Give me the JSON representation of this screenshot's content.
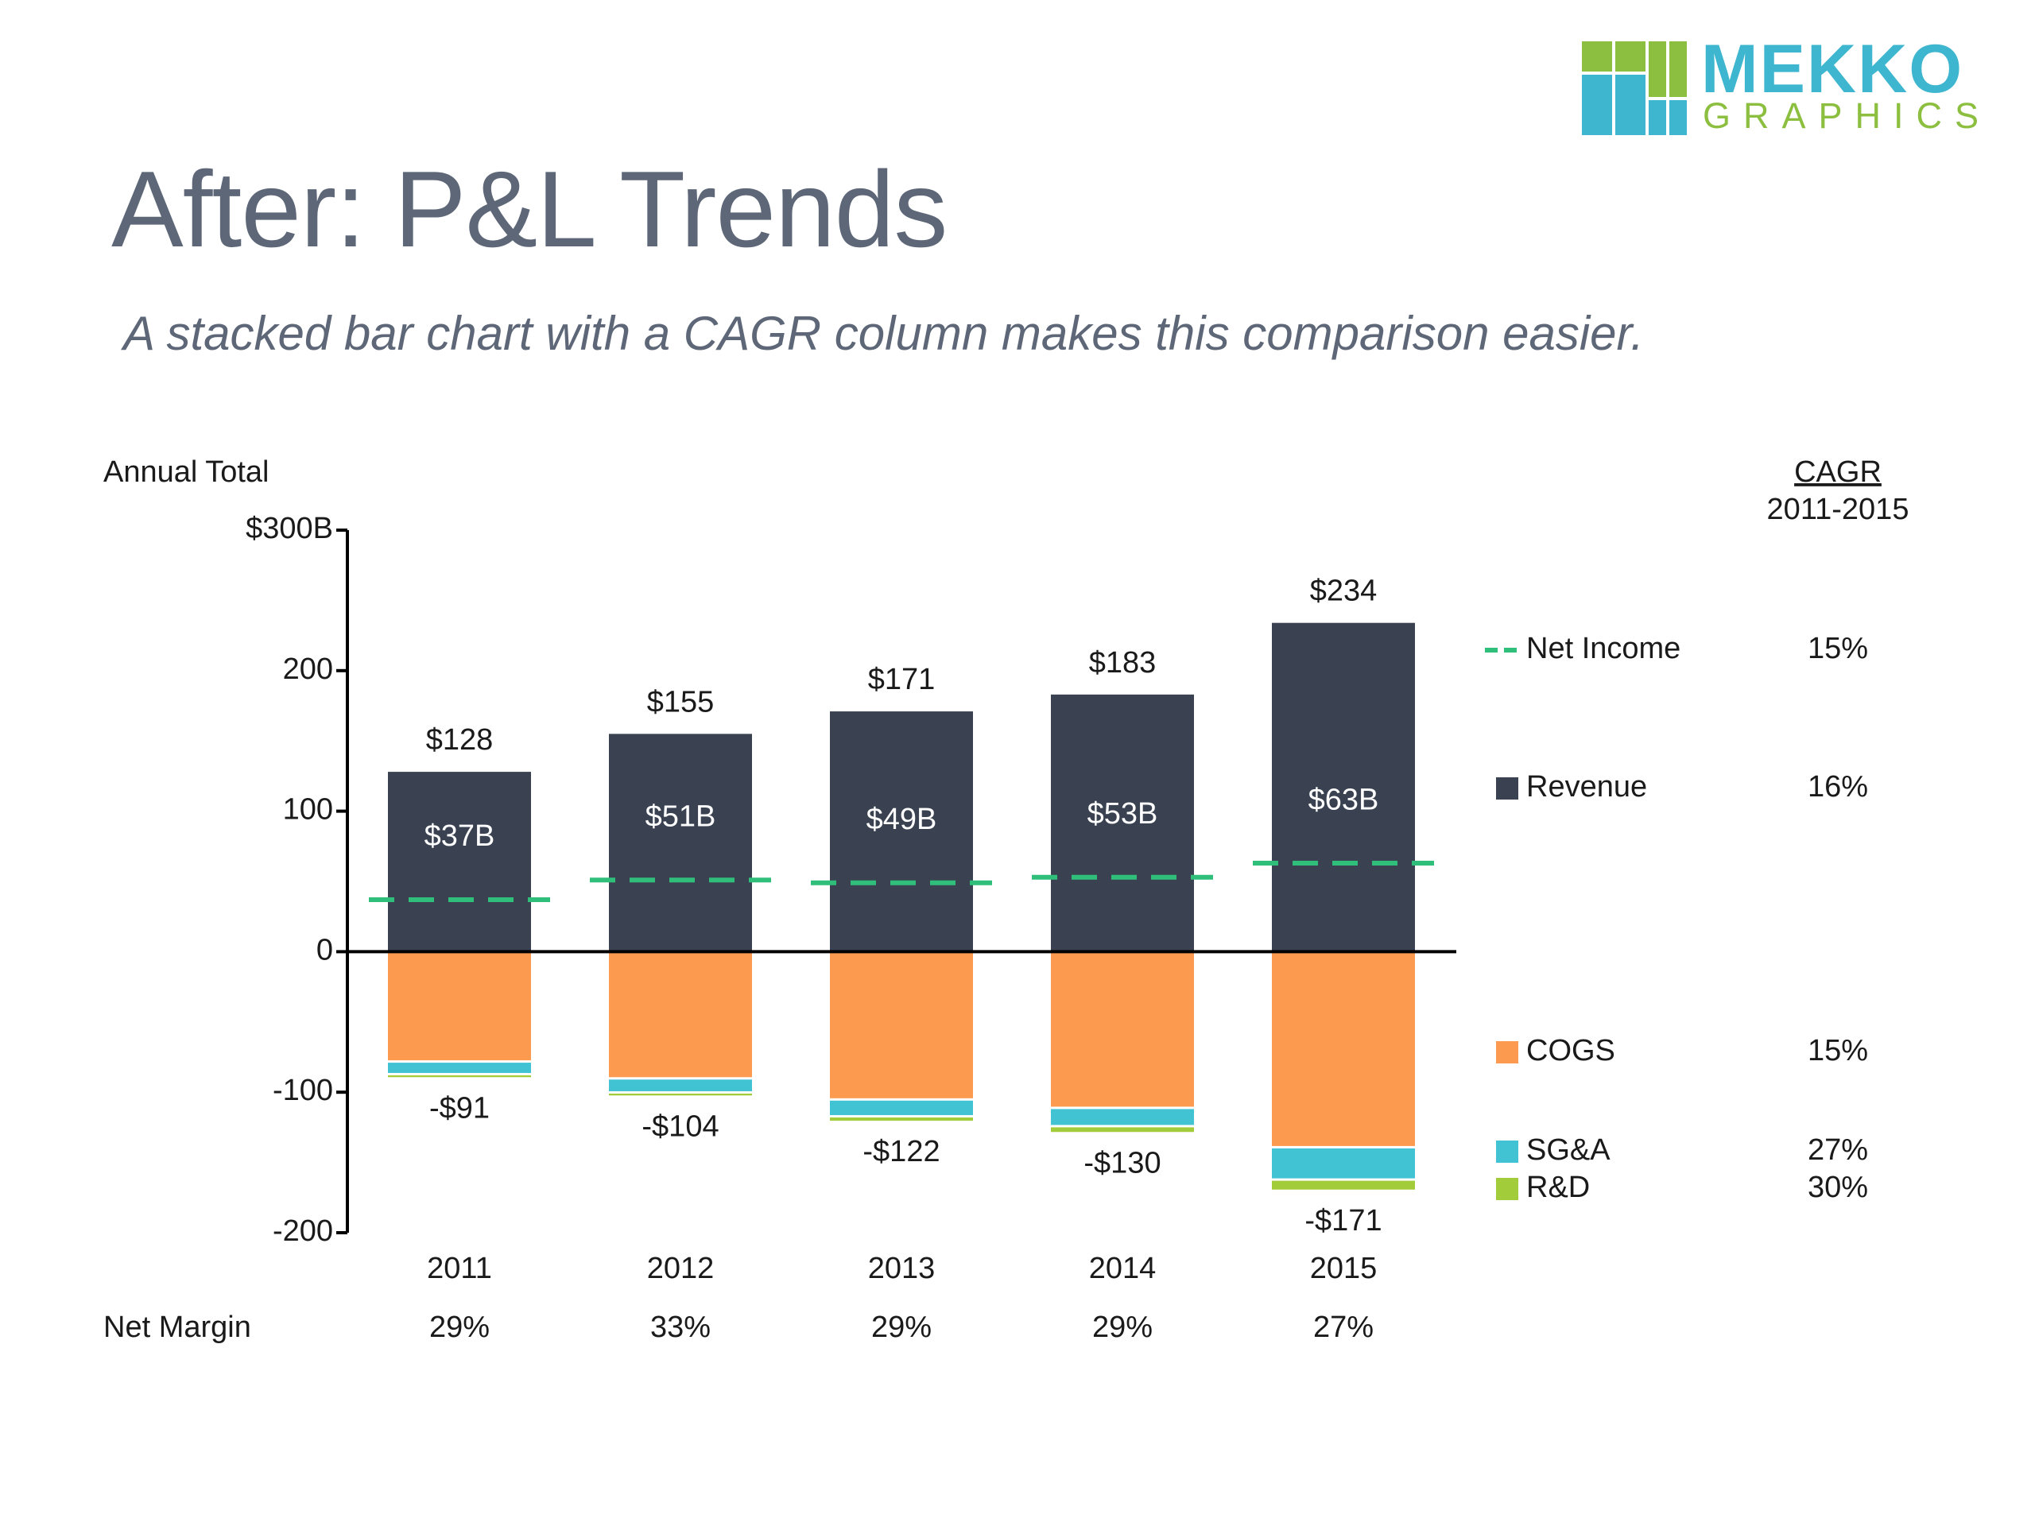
{
  "slide": {
    "title": "After: P&L Trends",
    "subtitle": "A stacked bar chart with a CAGR column makes this comparison easier.",
    "logo": {
      "word1": "MEKKO",
      "word2": "GRAPHICS"
    }
  },
  "colors": {
    "revenue": "#3a4252",
    "cogs": "#fc9b50",
    "sga": "#42c3d3",
    "rd": "#a3cc3a",
    "net_income": "#2fbf7a",
    "text": "#1a1a1a",
    "axis": "#000000",
    "logo_teal": "#3fb6cf",
    "logo_green": "#8cbf3f"
  },
  "chart_data": {
    "type": "bar",
    "stacked": true,
    "title": "",
    "ylabel": "Annual Total",
    "ylim": [
      -200,
      300
    ],
    "yticks": [
      {
        "value": 300,
        "label": "$300B"
      },
      {
        "value": 200,
        "label": "200"
      },
      {
        "value": 100,
        "label": "100"
      },
      {
        "value": 0,
        "label": "0"
      },
      {
        "value": -100,
        "label": "-100"
      },
      {
        "value": -200,
        "label": "-200"
      }
    ],
    "categories": [
      "2011",
      "2012",
      "2013",
      "2014",
      "2015"
    ],
    "series": [
      {
        "name": "Revenue",
        "key": "revenue",
        "values": [
          128,
          155,
          171,
          183,
          234
        ]
      },
      {
        "name": "COGS",
        "key": "cogs",
        "values": [
          -79,
          -91,
          -106,
          -112,
          -140
        ]
      },
      {
        "name": "SG&A",
        "key": "sga",
        "values": [
          -9,
          -10,
          -12,
          -13,
          -23
        ]
      },
      {
        "name": "R&D",
        "key": "rd",
        "values": [
          -3,
          -3,
          -4,
          -5,
          -8
        ]
      }
    ],
    "net_income": {
      "name": "Net Income",
      "values": [
        37,
        51,
        49,
        53,
        63
      ]
    },
    "top_labels": [
      "$128",
      "$155",
      "$171",
      "$183",
      "$234"
    ],
    "bottom_labels": [
      "-$91",
      "-$104",
      "-$122",
      "-$130",
      "-$171"
    ],
    "inner_labels": [
      "$37B",
      "$51B",
      "$49B",
      "$53B",
      "$63B"
    ],
    "net_margin": {
      "label": "Net Margin",
      "values": [
        "29%",
        "33%",
        "29%",
        "29%",
        "27%"
      ]
    },
    "legend": {
      "placement": "right",
      "items": [
        {
          "name": "Net Income",
          "key": "net_income",
          "style": "dash",
          "cagr": "15%"
        },
        {
          "name": "Revenue",
          "key": "revenue",
          "style": "square",
          "cagr": "16%"
        },
        {
          "name": "COGS",
          "key": "cogs",
          "style": "square",
          "cagr": "15%"
        },
        {
          "name": "SG&A",
          "key": "sga",
          "style": "square",
          "cagr": "27%"
        },
        {
          "name": "R&D",
          "key": "rd",
          "style": "square",
          "cagr": "30%"
        }
      ]
    },
    "cagr_header": {
      "title": "CAGR",
      "period": "2011-2015"
    },
    "grid": false
  }
}
